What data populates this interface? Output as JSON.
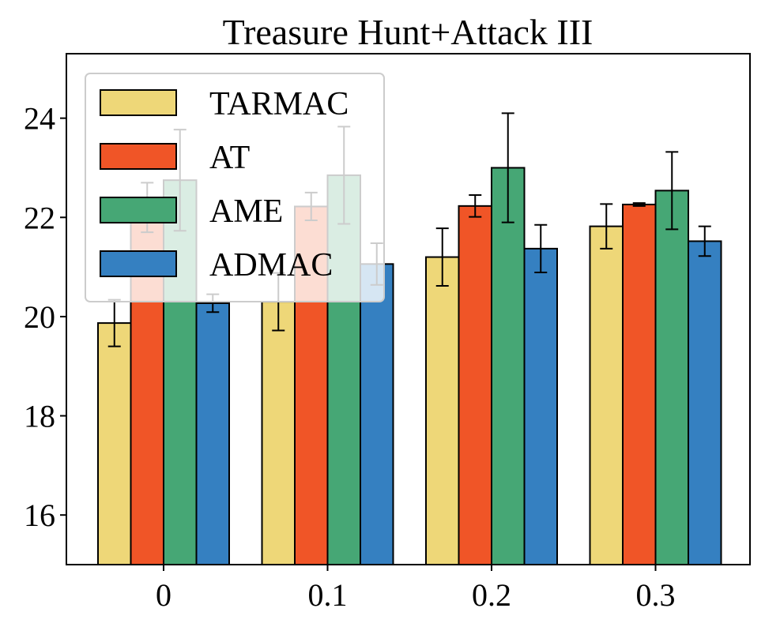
{
  "chart_data": {
    "type": "bar",
    "title": "Treasure Hunt+Attack III",
    "xlabel": "",
    "ylabel": "",
    "categories": [
      "0",
      "0.1",
      "0.2",
      "0.3"
    ],
    "ylim": [
      15,
      25.3
    ],
    "yticks": [
      16,
      18,
      20,
      22,
      24
    ],
    "grid": false,
    "legend_position": "top-left",
    "series": [
      {
        "name": "TARMAC",
        "color": "#EED778",
        "values": [
          19.87,
          20.3,
          21.2,
          21.82
        ],
        "errors": [
          0.47,
          0.58,
          0.58,
          0.45
        ]
      },
      {
        "name": "AT",
        "color": "#F05527",
        "values": [
          22.2,
          22.22,
          22.23,
          22.26
        ],
        "errors": [
          0.5,
          0.28,
          0.22,
          0.03
        ]
      },
      {
        "name": "AME",
        "color": "#46A775",
        "values": [
          22.75,
          22.85,
          23.0,
          22.54
        ],
        "errors": [
          1.02,
          0.98,
          1.1,
          0.78
        ]
      },
      {
        "name": "ADMAC",
        "color": "#3580C1",
        "values": [
          20.27,
          21.06,
          21.37,
          21.52
        ],
        "errors": [
          0.18,
          0.42,
          0.48,
          0.3
        ]
      }
    ]
  }
}
